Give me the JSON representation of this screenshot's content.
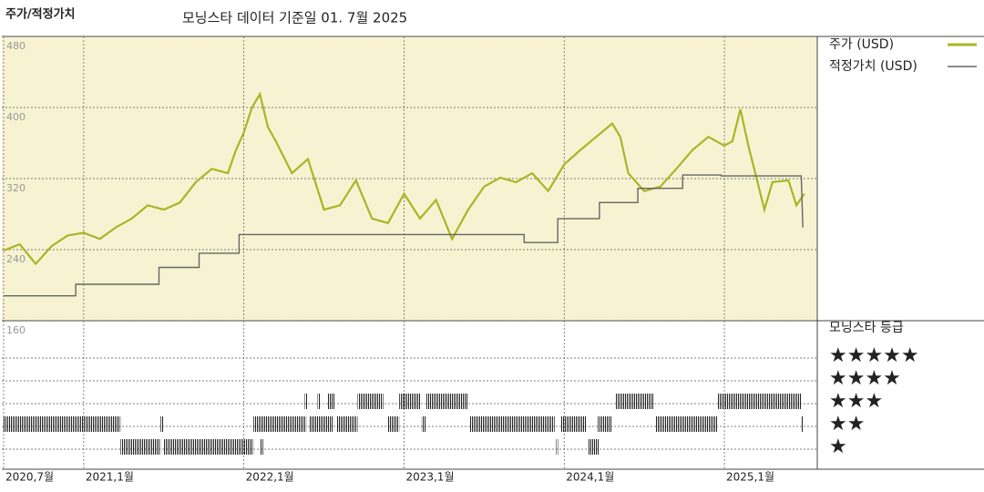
{
  "chart_data": {
    "type": "line",
    "header": "주가/적정가치",
    "title": "모닝스타 데이터 기준일 01. 7월 2025",
    "xlim": [
      2020.5,
      2025.58
    ],
    "xticks": [
      {
        "value": 2020.5,
        "label": "2020,7월"
      },
      {
        "value": 2021.0,
        "label": "2021,1월"
      },
      {
        "value": 2022.0,
        "label": "2022,1월"
      },
      {
        "value": 2023.0,
        "label": "2023,1월"
      },
      {
        "value": 2024.0,
        "label": "2024,1월"
      },
      {
        "value": 2025.0,
        "label": "2025,1월"
      }
    ],
    "ylim": [
      160,
      480
    ],
    "yticks": [
      160,
      240,
      320,
      400,
      480
    ],
    "grid": true,
    "series": [
      {
        "name": "주가 (USD)",
        "color": "#aab526",
        "x": [
          2020.5,
          2020.6,
          2020.7,
          2020.8,
          2020.9,
          2021.0,
          2021.1,
          2021.2,
          2021.3,
          2021.4,
          2021.5,
          2021.6,
          2021.7,
          2021.8,
          2021.9,
          2021.95,
          2022.0,
          2022.05,
          2022.1,
          2022.15,
          2022.2,
          2022.3,
          2022.4,
          2022.5,
          2022.6,
          2022.7,
          2022.8,
          2022.9,
          2023.0,
          2023.1,
          2023.2,
          2023.3,
          2023.4,
          2023.5,
          2023.6,
          2023.7,
          2023.8,
          2023.9,
          2024.0,
          2024.1,
          2024.2,
          2024.3,
          2024.35,
          2024.4,
          2024.5,
          2024.6,
          2024.7,
          2024.8,
          2024.9,
          2025.0,
          2025.05,
          2025.1,
          2025.15,
          2025.25,
          2025.3,
          2025.4,
          2025.45,
          2025.5
        ],
        "values": [
          239,
          246,
          224,
          244,
          256,
          259,
          252,
          265,
          275,
          290,
          285,
          293,
          316,
          331,
          326,
          352,
          372,
          400,
          415,
          378,
          362,
          326,
          342,
          285,
          290,
          318,
          275,
          270,
          303,
          275,
          296,
          252,
          285,
          311,
          321,
          316,
          326,
          306,
          336,
          352,
          367,
          382,
          367,
          326,
          306,
          311,
          331,
          352,
          367,
          357,
          362,
          398,
          357,
          285,
          316,
          318,
          290,
          303
        ]
      },
      {
        "name": "적정가치 (USD)",
        "color": "#666666",
        "x": [
          2020.5,
          2020.95,
          2020.95,
          2021.47,
          2021.47,
          2021.72,
          2021.72,
          2021.97,
          2021.97,
          2023.75,
          2023.75,
          2023.96,
          2023.96,
          2024.22,
          2024.22,
          2024.46,
          2024.46,
          2024.74,
          2024.74,
          2024.98,
          2024.98,
          2025.48,
          2025.49
        ],
        "values": [
          188,
          188,
          201,
          201,
          220,
          220,
          236,
          236,
          257,
          257,
          248,
          248,
          275,
          275,
          293,
          293,
          309,
          309,
          324,
          324,
          323,
          323,
          265
        ]
      }
    ],
    "ratings": {
      "title": "모닝스타 등급",
      "labels": [
        "★★★★★",
        "★★★★",
        "★★★",
        "★★",
        "★"
      ],
      "periods": [
        {
          "start": 2020.5,
          "end": 2021.23,
          "stars": 2
        },
        {
          "start": 2021.48,
          "end": 2021.5,
          "stars": 2
        },
        {
          "start": 2022.06,
          "end": 2022.39,
          "stars": 2
        },
        {
          "start": 2022.41,
          "end": 2022.56,
          "stars": 2
        },
        {
          "start": 2022.58,
          "end": 2022.71,
          "stars": 2
        },
        {
          "start": 2022.9,
          "end": 2022.97,
          "stars": 2
        },
        {
          "start": 2023.11,
          "end": 2023.14,
          "stars": 2
        },
        {
          "start": 2023.41,
          "end": 2023.94,
          "stars": 2
        },
        {
          "start": 2023.98,
          "end": 2024.14,
          "stars": 2
        },
        {
          "start": 2024.21,
          "end": 2024.3,
          "stars": 2
        },
        {
          "start": 2024.57,
          "end": 2024.96,
          "stars": 2
        },
        {
          "start": 2025.48,
          "end": 2025.49,
          "stars": 2
        },
        {
          "start": 2021.23,
          "end": 2021.48,
          "stars": 1
        },
        {
          "start": 2021.5,
          "end": 2022.06,
          "stars": 1
        },
        {
          "start": 2022.1,
          "end": 2022.12,
          "stars": 1
        },
        {
          "start": 2023.95,
          "end": 2023.96,
          "stars": 1
        },
        {
          "start": 2024.15,
          "end": 2024.22,
          "stars": 1
        },
        {
          "start": 2022.38,
          "end": 2022.4,
          "stars": 3
        },
        {
          "start": 2022.46,
          "end": 2022.48,
          "stars": 3
        },
        {
          "start": 2022.52,
          "end": 2022.57,
          "stars": 3
        },
        {
          "start": 2022.71,
          "end": 2022.87,
          "stars": 3
        },
        {
          "start": 2022.97,
          "end": 2023.1,
          "stars": 3
        },
        {
          "start": 2023.14,
          "end": 2023.4,
          "stars": 3
        },
        {
          "start": 2024.32,
          "end": 2024.56,
          "stars": 3
        },
        {
          "start": 2024.96,
          "end": 2025.48,
          "stars": 3
        }
      ]
    }
  }
}
